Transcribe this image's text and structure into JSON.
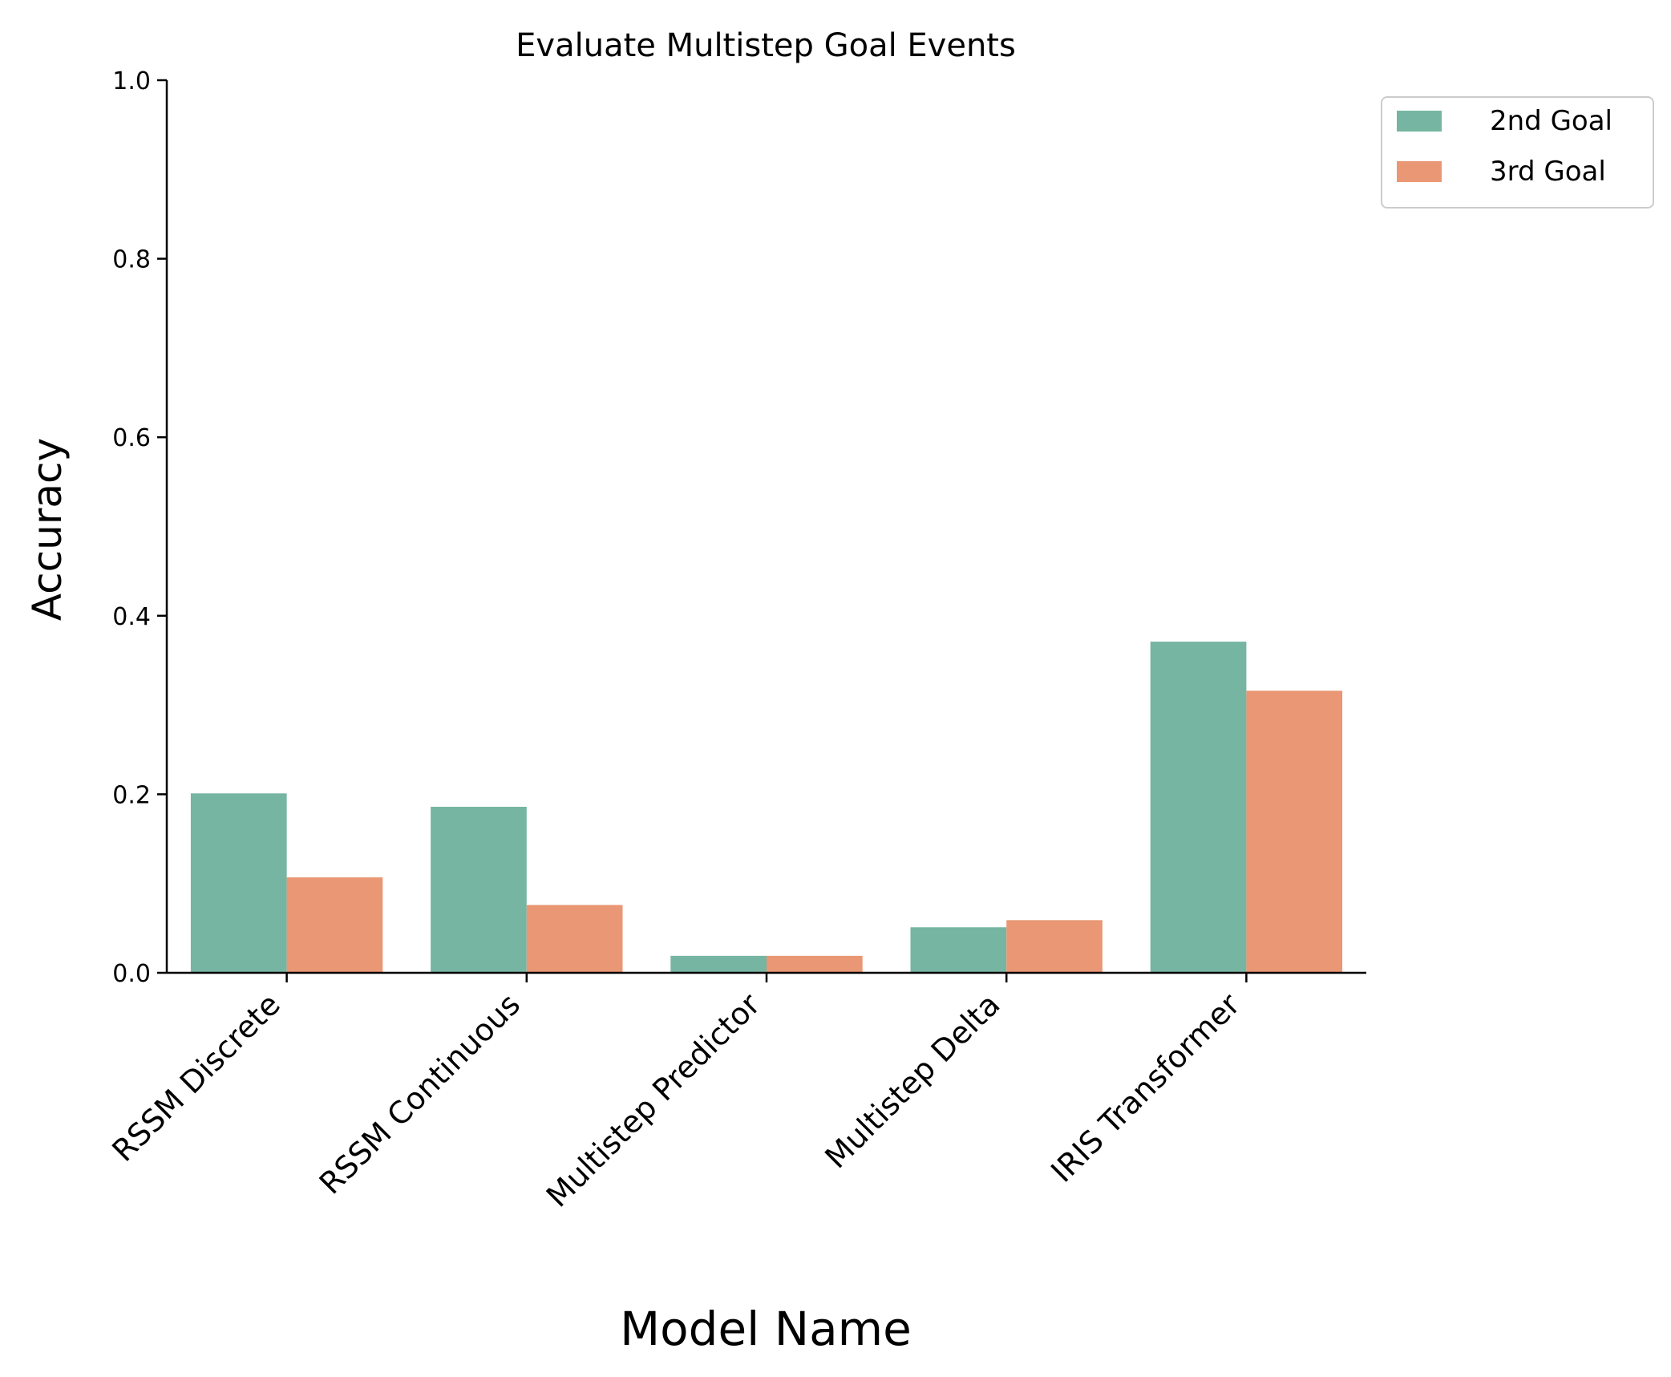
{
  "chart_data": {
    "type": "bar",
    "title": "Evaluate Multistep Goal Events",
    "xlabel": "Model Name",
    "ylabel": "Accuracy",
    "ylim": [
      0,
      1.0
    ],
    "yticks": [
      "0.0",
      "0.2",
      "0.4",
      "0.6",
      "0.8",
      "1.0"
    ],
    "categories": [
      "RSSM Discrete",
      "RSSM Continuous",
      "Multistep Predictor",
      "Multistep Delta",
      "IRIS Transformer"
    ],
    "series": [
      {
        "name": "2nd Goal",
        "color": "#76b5a1",
        "values": [
          0.201,
          0.186,
          0.019,
          0.051,
          0.371
        ]
      },
      {
        "name": "3rd Goal",
        "color": "#e99774",
        "values": [
          0.107,
          0.076,
          0.019,
          0.059,
          0.316
        ]
      }
    ],
    "grid": false,
    "legend_position": "outside top-right"
  }
}
